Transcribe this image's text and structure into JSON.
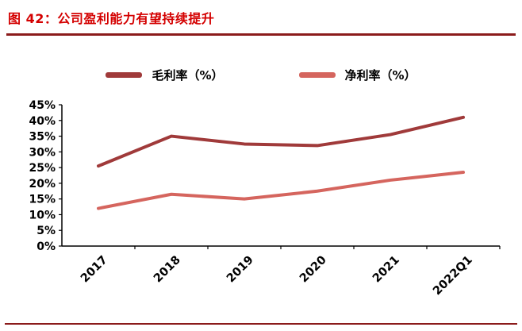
{
  "figure": {
    "title": "图 42：公司盈利能力有望持续提升"
  },
  "chart_data": {
    "type": "line",
    "title": "公司盈利能力有望持续提升",
    "categories": [
      "2017",
      "2018",
      "2019",
      "2020",
      "2021",
      "2022Q1"
    ],
    "series": [
      {
        "name": "毛利率（%）",
        "color": "#A03A3A",
        "values": [
          25.5,
          35.0,
          32.5,
          32.0,
          35.5,
          41.0
        ]
      },
      {
        "name": "净利率（%）",
        "color": "#D5655E",
        "values": [
          12.0,
          16.5,
          15.0,
          17.5,
          21.0,
          23.5
        ]
      }
    ],
    "ylim": [
      0,
      45
    ],
    "ytick_step": 5,
    "ytick_labels": [
      "0%",
      "5%",
      "10%",
      "15%",
      "20%",
      "25%",
      "30%",
      "35%",
      "40%",
      "45%"
    ],
    "grid": false,
    "legend_position": "top",
    "xlabel": "",
    "ylabel": ""
  },
  "style": {
    "title_color": "#D40000",
    "rule_color": "#8B1B1B",
    "bottom_rule_color": "#8B1B1B",
    "axis_color": "#000000",
    "tick_label_color": "#000000"
  }
}
